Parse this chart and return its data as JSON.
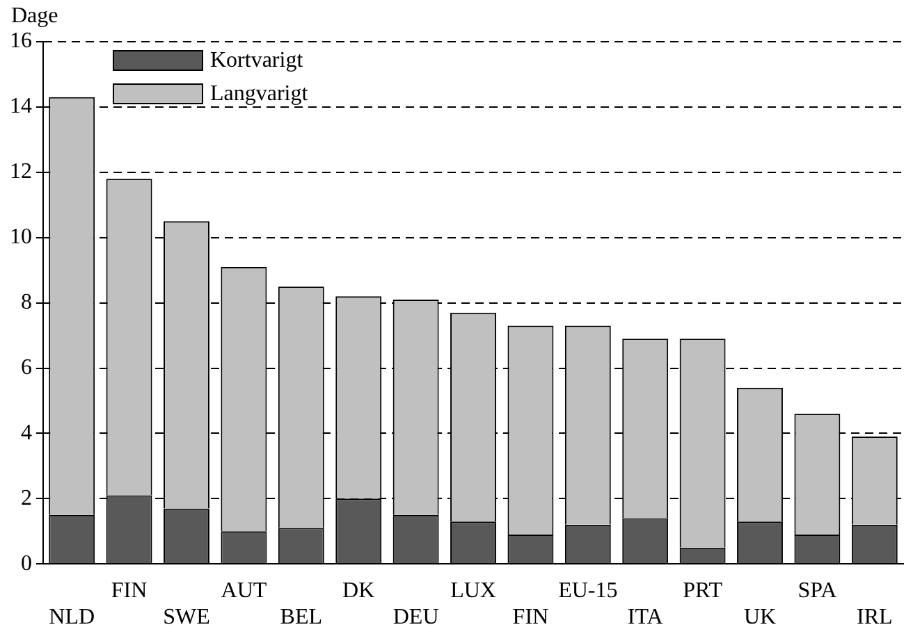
{
  "chart_data": {
    "type": "bar",
    "stacked": true,
    "ylabel": "Dage",
    "categories": [
      "NLD",
      "FIN",
      "SWE",
      "AUT",
      "BEL",
      "DK",
      "DEU",
      "LUX",
      "FIN",
      "EU-15",
      "ITA",
      "PRT",
      "UK",
      "SPA",
      "IRL"
    ],
    "series": [
      {
        "name": "Kortvarigt",
        "color": "#595959",
        "values": [
          1.5,
          2.1,
          1.7,
          1.0,
          1.1,
          2.0,
          1.5,
          1.3,
          0.9,
          1.2,
          1.4,
          0.5,
          1.3,
          0.9,
          1.2
        ]
      },
      {
        "name": "Langvarigt",
        "color": "#c0c0c0",
        "values": [
          12.8,
          9.7,
          8.8,
          8.1,
          7.4,
          6.2,
          6.6,
          6.4,
          6.4,
          6.1,
          5.5,
          6.4,
          4.1,
          3.7,
          2.7
        ]
      }
    ],
    "ylim": [
      0,
      16
    ],
    "yticks": [
      0,
      2,
      4,
      6,
      8,
      10,
      12,
      14,
      16
    ],
    "grid": "y",
    "legend": "top left"
  }
}
